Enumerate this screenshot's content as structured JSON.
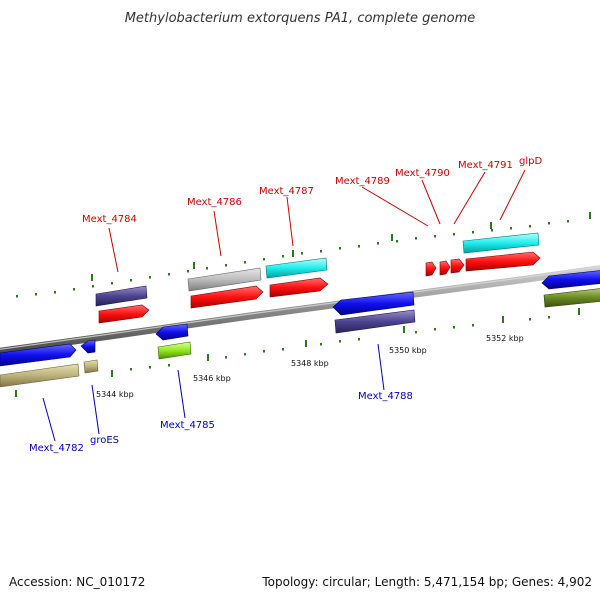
{
  "title": "Methylobacterium extorquens PA1, complete genome",
  "footer": {
    "accession": "Accession: NC_010172",
    "summary": "Topology: circular; Length: 5,471,154 bp; Genes: 4,902"
  },
  "colors": {
    "top_label": "#cc0000",
    "bottom_label": "#0000bb",
    "ruler": "#2a7a1a",
    "backbone": "#8a8a8a"
  },
  "ruler_labels": [
    "5344 kbp",
    "5346 kbp",
    "5348 kbp",
    "5350 kbp",
    "5352 kbp"
  ],
  "gene_labels_top": [
    "Mext_4784",
    "Mext_4786",
    "Mext_4787",
    "Mext_4789",
    "Mext_4790",
    "Mext_4791",
    "glpD"
  ],
  "gene_labels_bottom": [
    "Mext_4782",
    "groES",
    "Mext_4785",
    "Mext_4788"
  ]
}
